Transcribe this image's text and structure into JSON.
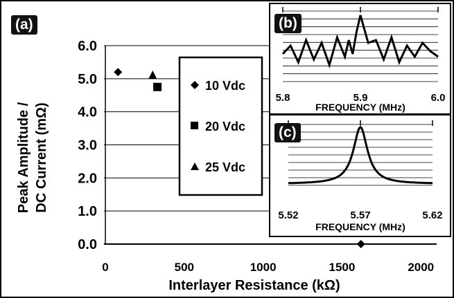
{
  "panel_labels": {
    "a": "(a)",
    "b": "(b)",
    "c": "(c)"
  },
  "chart_data": [
    {
      "id": "a",
      "type": "scatter",
      "ylabel_line1": "Peak Amplitude /",
      "ylabel_line2": "DC Current (mΩ)",
      "xlabel": "Interlayer Resistance (kΩ)",
      "xlim": [
        0,
        2100
      ],
      "ylim": [
        0.0,
        6.0
      ],
      "x_ticks": [
        "0",
        "500",
        "1000",
        "1500",
        "2000"
      ],
      "y_ticks": [
        "0.0",
        "1.0",
        "2.0",
        "3.0",
        "4.0",
        "5.0",
        "6.0"
      ],
      "grid": "horizontal",
      "legend_placement": "center-right",
      "series": [
        {
          "name": "10 Vdc",
          "marker": "diamond",
          "points": [
            [
              80,
              5.2
            ],
            [
              1620,
              0.0
            ]
          ]
        },
        {
          "name": "20 Vdc",
          "marker": "square",
          "points": [
            [
              330,
              4.75
            ]
          ]
        },
        {
          "name": "25 Vdc",
          "marker": "triangle",
          "points": [
            [
              300,
              5.1
            ]
          ]
        }
      ]
    },
    {
      "id": "b",
      "type": "line",
      "xlabel": "FREQUENCY (MHz)",
      "xlim": [
        5.8,
        6.0
      ],
      "x_ticks": [
        "5.8",
        "5.9",
        "6.0"
      ],
      "grid": "horizontal",
      "x": [
        5.8,
        5.81,
        5.82,
        5.83,
        5.84,
        5.85,
        5.86,
        5.87,
        5.88,
        5.885,
        5.89,
        5.895,
        5.9,
        5.905,
        5.91,
        5.92,
        5.93,
        5.94,
        5.95,
        5.96,
        5.97,
        5.98,
        5.99,
        6.0
      ],
      "y": [
        0.3,
        0.45,
        0.15,
        0.55,
        0.2,
        0.5,
        0.1,
        0.6,
        0.25,
        0.55,
        0.3,
        0.7,
        1.0,
        0.75,
        0.5,
        0.55,
        0.2,
        0.6,
        0.15,
        0.45,
        0.25,
        0.5,
        0.35,
        0.25
      ]
    },
    {
      "id": "c",
      "type": "line",
      "xlabel": "FREQUENCY (MHz)",
      "xlim": [
        5.52,
        5.62
      ],
      "x_ticks": [
        "5.52",
        "5.57",
        "5.62"
      ],
      "grid": "horizontal",
      "center": 5.57,
      "halfwidth": 0.006
    }
  ]
}
